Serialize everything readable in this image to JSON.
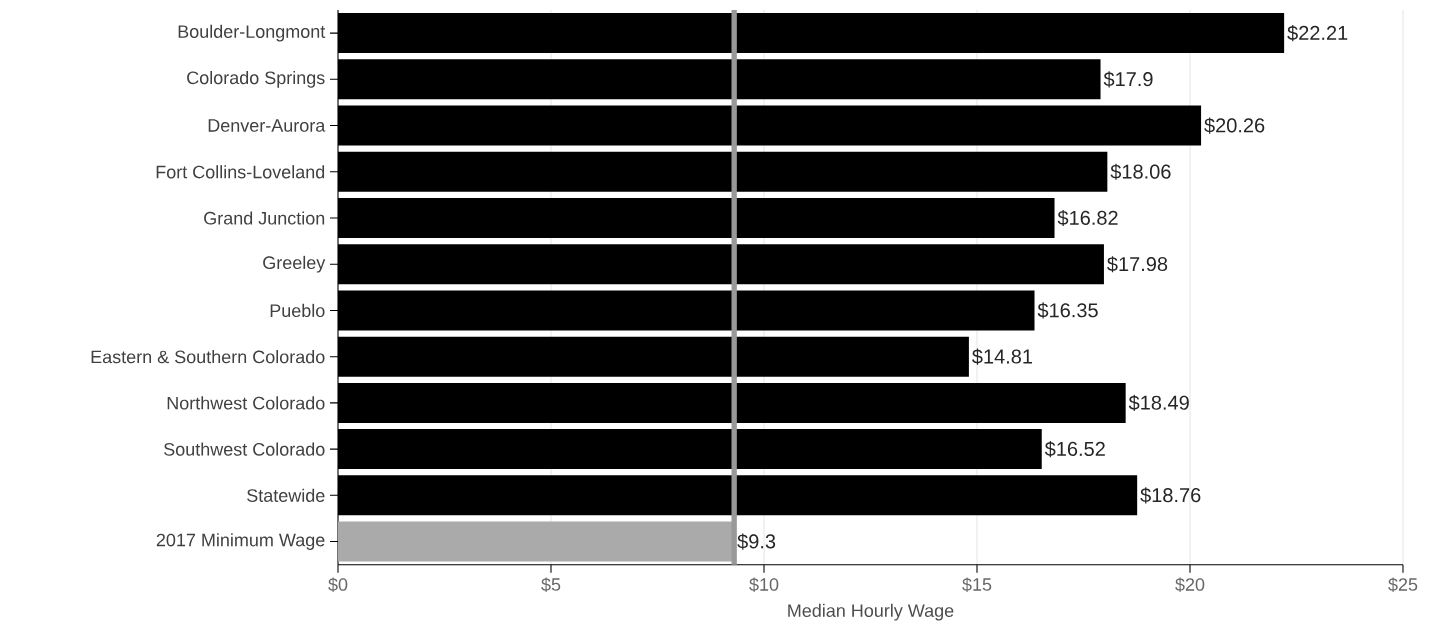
{
  "chart_data": {
    "type": "bar",
    "orientation": "horizontal",
    "xlabel": "Median Hourly Wage",
    "categories": [
      "Boulder-Longmont",
      "Colorado Springs",
      "Denver-Aurora",
      "Fort Collins-Loveland",
      "Grand Junction",
      "Greeley",
      "Pueblo",
      "Eastern & Southern Colorado",
      "Northwest Colorado",
      "Southwest Colorado",
      "Statewide",
      "2017 Minimum Wage"
    ],
    "values": [
      22.21,
      17.9,
      20.26,
      18.06,
      16.82,
      17.98,
      16.35,
      14.81,
      18.49,
      16.52,
      18.76,
      9.3
    ],
    "value_labels": [
      "$22.21",
      "$17.9",
      "$20.26",
      "$18.06",
      "$16.82",
      "$17.98",
      "$16.35",
      "$14.81",
      "$18.49",
      "$16.52",
      "$18.76",
      "$9.3"
    ],
    "colors": [
      "#000000",
      "#000000",
      "#000000",
      "#000000",
      "#000000",
      "#000000",
      "#000000",
      "#000000",
      "#000000",
      "#000000",
      "#000000",
      "#aaaaaa"
    ],
    "xlim": [
      0,
      25
    ],
    "xticks": [
      {
        "value": 0,
        "label": "$0"
      },
      {
        "value": 5,
        "label": "$5"
      },
      {
        "value": 10,
        "label": "$10"
      },
      {
        "value": 15,
        "label": "$15"
      },
      {
        "value": 20,
        "label": "$20"
      },
      {
        "value": 25,
        "label": "$25"
      }
    ],
    "grid": "x",
    "ref_lines": [
      {
        "axis": "x",
        "value": 9.3,
        "color": "#999999"
      }
    ]
  }
}
